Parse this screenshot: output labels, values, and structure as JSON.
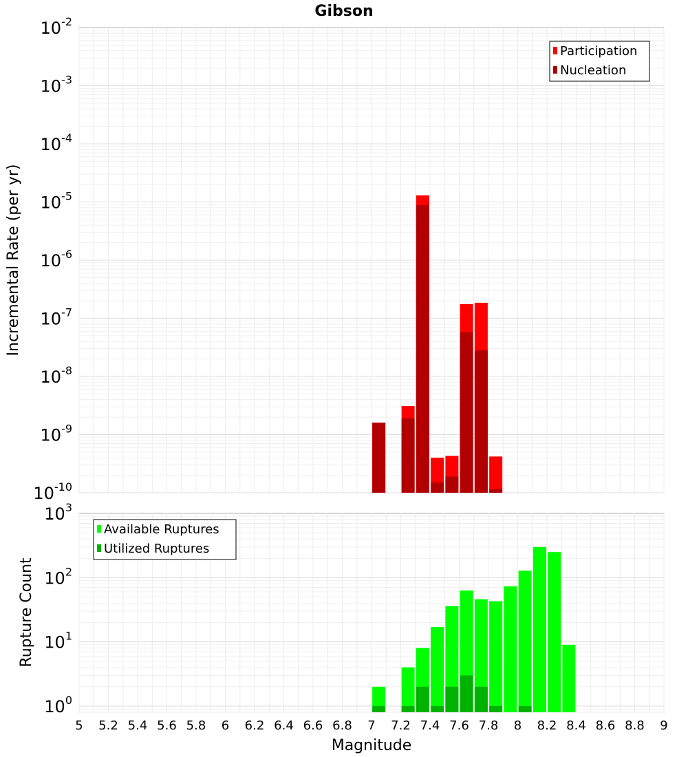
{
  "title": "Gibson",
  "xlabel": "Magnitude",
  "xticks": [
    "5",
    "5.2",
    "5.4",
    "5.6",
    "5.8",
    "6",
    "6.2",
    "6.4",
    "6.6",
    "6.8",
    "7",
    "7.2",
    "7.4",
    "7.6",
    "7.8",
    "8",
    "8.2",
    "8.4",
    "8.6",
    "8.8",
    "9"
  ],
  "chart_data": [
    {
      "type": "bar",
      "ylabel": "Incremental Rate (per yr)",
      "yscale": "log",
      "ylim": [
        1e-10,
        0.01
      ],
      "xlim": [
        5,
        9
      ],
      "yticks": [
        {
          "base": "10",
          "exp": "-2"
        },
        {
          "base": "10",
          "exp": "-3"
        },
        {
          "base": "10",
          "exp": "-4"
        },
        {
          "base": "10",
          "exp": "-5"
        },
        {
          "base": "10",
          "exp": "-6"
        },
        {
          "base": "10",
          "exp": "-7"
        },
        {
          "base": "10",
          "exp": "-8"
        },
        {
          "base": "10",
          "exp": "-9"
        },
        {
          "base": "10",
          "exp": "-10"
        }
      ],
      "legend_position": "top-right",
      "series": [
        {
          "name": "Participation",
          "color": "#ff0000",
          "x": [
            7.05,
            7.25,
            7.35,
            7.45,
            7.55,
            7.65,
            7.75,
            7.85
          ],
          "values": [
            1.6e-09,
            3.1e-09,
            1.3e-05,
            4e-10,
            4.3e-10,
            1.75e-07,
            1.85e-07,
            4.2e-10
          ]
        },
        {
          "name": "Nucleation",
          "color": "#b20000",
          "x": [
            7.05,
            7.25,
            7.35,
            7.45,
            7.55,
            7.65,
            7.75,
            7.85
          ],
          "values": [
            1.6e-09,
            1.9e-09,
            8.8e-06,
            1.5e-10,
            1.9e-10,
            5.8e-08,
            2.8e-08,
            1.15e-10
          ]
        }
      ]
    },
    {
      "type": "bar",
      "ylabel": "Rupture Count",
      "yscale": "log",
      "ylim": [
        0.8,
        1000
      ],
      "xlim": [
        5,
        9
      ],
      "yticks": [
        {
          "base": "10",
          "exp": "3"
        },
        {
          "base": "10",
          "exp": "2"
        },
        {
          "base": "10",
          "exp": "1"
        },
        {
          "base": "10",
          "exp": "0"
        }
      ],
      "legend_position": "top-left",
      "series": [
        {
          "name": "Available Ruptures",
          "color": "#00ff00",
          "x": [
            7.05,
            7.25,
            7.35,
            7.45,
            7.55,
            7.65,
            7.75,
            7.85,
            7.95,
            8.05,
            8.15,
            8.25,
            8.35
          ],
          "values": [
            2,
            4,
            8,
            17,
            36,
            63,
            46,
            43,
            73,
            128,
            300,
            250,
            9
          ]
        },
        {
          "name": "Utilized Ruptures",
          "color": "#00b200",
          "x": [
            7.05,
            7.25,
            7.35,
            7.45,
            7.55,
            7.65,
            7.75,
            7.85,
            8.05
          ],
          "values": [
            1,
            1,
            2,
            1,
            2,
            3,
            2,
            1,
            1
          ]
        }
      ]
    }
  ]
}
